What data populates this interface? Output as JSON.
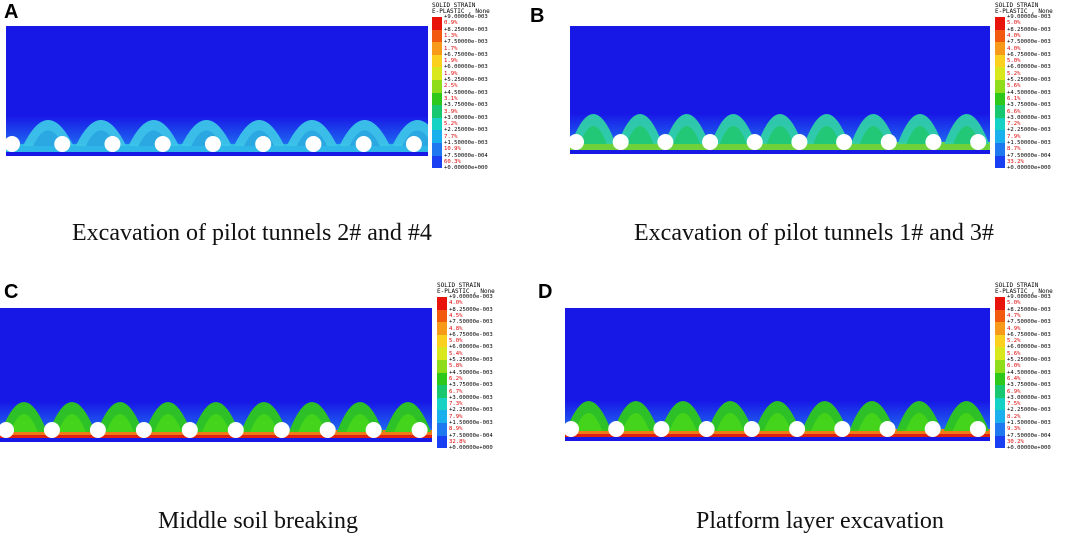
{
  "legend": {
    "title_line1": "SOLID STRAIN",
    "title_line2": "E-PLASTIC , None",
    "values": [
      "+9.00000e-003",
      "+8.25000e-003",
      "+7.50000e-003",
      "+6.75000e-003",
      "+6.00000e-003",
      "+5.25000e-003",
      "+4.50000e-003",
      "+3.75000e-003",
      "+3.00000e-003",
      "+2.25000e-003",
      "+1.50000e-003",
      "+7.50000e-004",
      "+0.00000e+000"
    ],
    "colors": [
      "#e8140c",
      "#f25a10",
      "#f79a1a",
      "#fbd01e",
      "#d8e81c",
      "#8fdc1a",
      "#2ec81c",
      "#18c870",
      "#16d2c4",
      "#1ab0ee",
      "#1e78f0",
      "#1a3ef2",
      "#1010e8"
    ]
  },
  "panels": [
    {
      "letter": "A",
      "caption": "Excavation of pilot tunnels 2# and #4",
      "percentages": [
        "0.9%",
        "1.3%",
        "1.7%",
        "1.9%",
        "1.9%",
        "2.5%",
        "3.1%",
        "3.9%",
        "5.2%",
        "7.7%",
        "10.9%",
        "60.3%"
      ],
      "legend_values_override": {
        "12": "+0.00000e+000"
      }
    },
    {
      "letter": "B",
      "caption": "Excavation of pilot tunnels 1# and 3#",
      "percentages": [
        "5.0%",
        "4.0%",
        "4.0%",
        "5.0%",
        "5.2%",
        "5.6%",
        "6.1%",
        "6.6%",
        "7.2%",
        "7.9%",
        "8.7%",
        "33.2%"
      ]
    },
    {
      "letter": "C",
      "caption": "Middle soil breaking",
      "percentages": [
        "4.0%",
        "4.5%",
        "4.8%",
        "5.0%",
        "5.4%",
        "5.8%",
        "6.2%",
        "6.7%",
        "7.3%",
        "7.9%",
        "8.9%",
        "32.8%"
      ]
    },
    {
      "letter": "D",
      "caption": "Platform layer excavation",
      "percentages": [
        "5.0%",
        "4.7%",
        "4.9%",
        "5.2%",
        "5.6%",
        "6.0%",
        "6.4%",
        "6.9%",
        "7.5%",
        "8.2%",
        "9.3%",
        "30.2%"
      ]
    }
  ]
}
